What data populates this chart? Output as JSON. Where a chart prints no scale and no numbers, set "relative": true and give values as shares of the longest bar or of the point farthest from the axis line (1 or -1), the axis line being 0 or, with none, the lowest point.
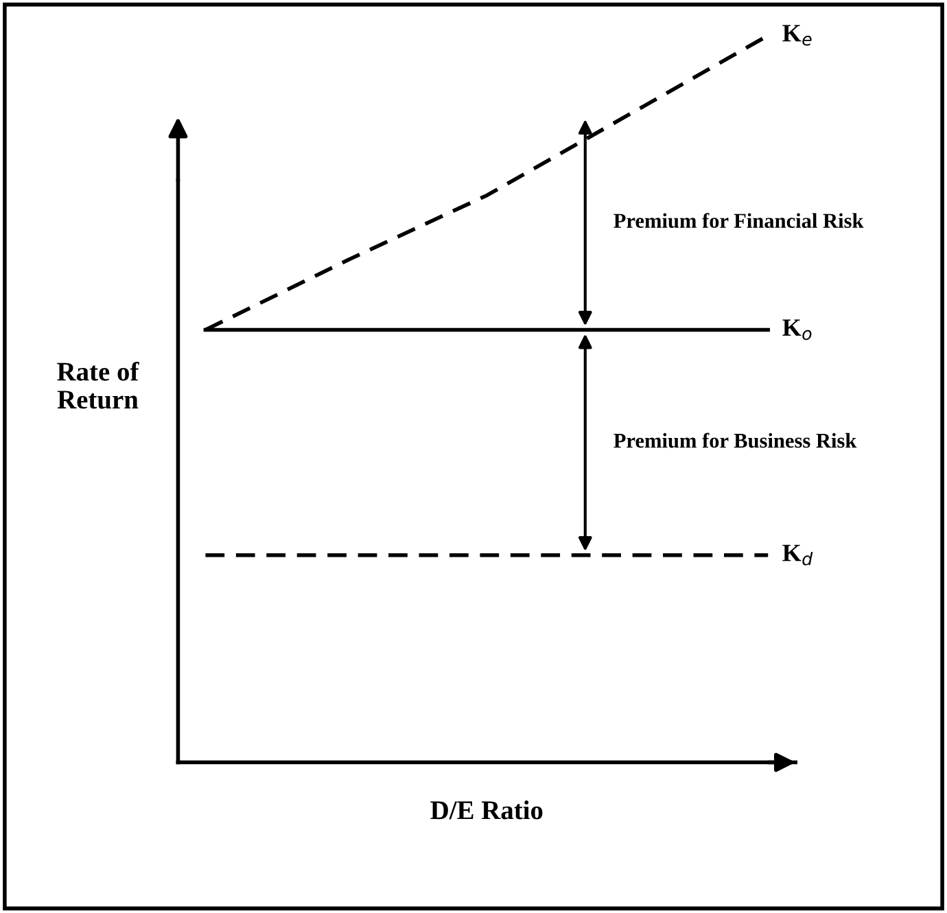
{
  "chart_data": {
    "type": "line",
    "relative": true,
    "xlabel": "D/E Ratio",
    "ylabel": "Rate of\nReturn",
    "categories": [
      null,
      null,
      null,
      null,
      null
    ],
    "series": [
      {
        "name": "K$_{e}$",
        "color": "#000000",
        "line_style": "dashed",
        "values": [
          0.595,
          0.69,
          0.78,
          0.89,
          1.0
        ]
      },
      {
        "name": "K$_{o}$",
        "color": "#000000",
        "line_style": "solid",
        "values": [
          0.595,
          0.595,
          0.595,
          0.595,
          0.595
        ]
      },
      {
        "name": "K$_{d}$",
        "color": "#000000",
        "line_style": "dashed",
        "values": [
          0.285,
          0.285,
          0.285,
          0.285,
          0.285
        ]
      }
    ],
    "annotations": [
      "Premium for Financial Risk",
      "Premium for Business Risk"
    ],
    "legend": false
  }
}
